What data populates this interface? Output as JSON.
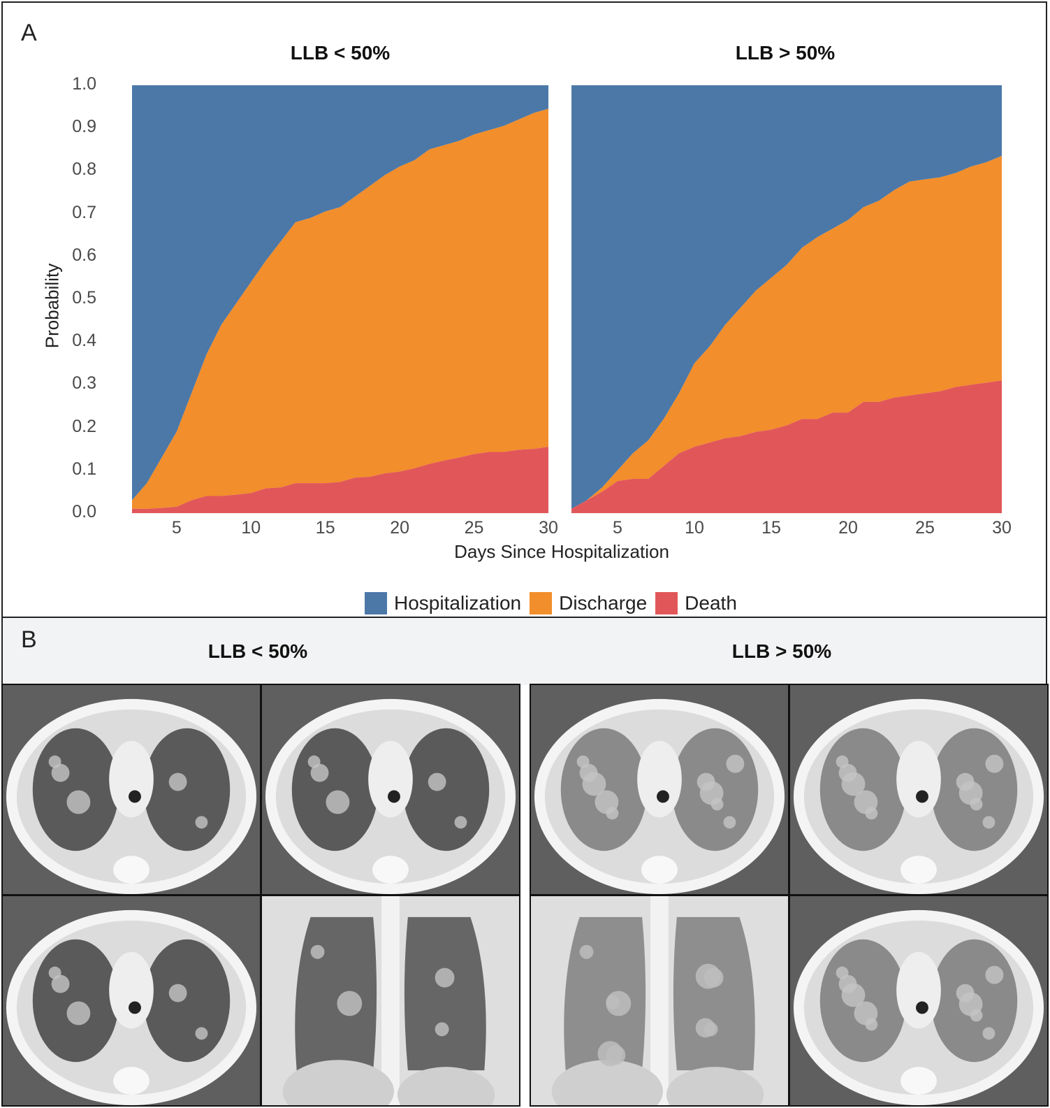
{
  "figure": {
    "panel_a_label": "A",
    "panel_b_label": "B"
  },
  "chart_data": {
    "type": "area",
    "stacked": true,
    "ylabel": "Probability",
    "xlabel": "Days Since Hospitalization",
    "ylim": [
      0.0,
      1.0
    ],
    "xlim": [
      2,
      30
    ],
    "yticks": [
      "0.0",
      "0.1",
      "0.2",
      "0.3",
      "0.4",
      "0.5",
      "0.6",
      "0.7",
      "0.8",
      "0.9",
      "1.0"
    ],
    "xticks": [
      "5",
      "10",
      "15",
      "20",
      "25",
      "30"
    ],
    "legend_position": "bottom",
    "legend": [
      {
        "name": "Hospitalization",
        "color": "#4c78a8"
      },
      {
        "name": "Discharge",
        "color": "#f28e2b"
      },
      {
        "name": "Death",
        "color": "#e15759"
      }
    ],
    "facets": [
      {
        "title": "LLB < 50%",
        "x": [
          2,
          3,
          4,
          5,
          6,
          7,
          8,
          9,
          10,
          11,
          12,
          13,
          14,
          15,
          16,
          17,
          18,
          19,
          20,
          21,
          22,
          23,
          24,
          25,
          26,
          27,
          28,
          29,
          30
        ],
        "death": [
          0.01,
          0.01,
          0.012,
          0.015,
          0.03,
          0.04,
          0.04,
          0.043,
          0.047,
          0.058,
          0.06,
          0.07,
          0.07,
          0.07,
          0.073,
          0.083,
          0.085,
          0.093,
          0.097,
          0.105,
          0.115,
          0.123,
          0.13,
          0.138,
          0.143,
          0.143,
          0.148,
          0.15,
          0.155
        ],
        "discharge_or_death": [
          0.03,
          0.07,
          0.13,
          0.19,
          0.28,
          0.37,
          0.44,
          0.49,
          0.54,
          0.59,
          0.635,
          0.68,
          0.69,
          0.705,
          0.715,
          0.74,
          0.765,
          0.79,
          0.81,
          0.825,
          0.85,
          0.86,
          0.87,
          0.885,
          0.895,
          0.905,
          0.92,
          0.935,
          0.945
        ]
      },
      {
        "title": "LLB > 50%",
        "x": [
          2,
          3,
          4,
          5,
          6,
          7,
          8,
          9,
          10,
          11,
          12,
          13,
          14,
          15,
          16,
          17,
          18,
          19,
          20,
          21,
          22,
          23,
          24,
          25,
          26,
          27,
          28,
          29,
          30
        ],
        "death": [
          0.01,
          0.03,
          0.05,
          0.075,
          0.08,
          0.08,
          0.11,
          0.14,
          0.155,
          0.165,
          0.175,
          0.18,
          0.19,
          0.195,
          0.205,
          0.22,
          0.22,
          0.235,
          0.235,
          0.26,
          0.26,
          0.27,
          0.275,
          0.28,
          0.285,
          0.295,
          0.3,
          0.305,
          0.31
        ],
        "discharge_or_death": [
          0.01,
          0.03,
          0.06,
          0.1,
          0.14,
          0.17,
          0.22,
          0.28,
          0.35,
          0.39,
          0.44,
          0.48,
          0.52,
          0.55,
          0.58,
          0.62,
          0.645,
          0.665,
          0.685,
          0.715,
          0.73,
          0.755,
          0.775,
          0.78,
          0.785,
          0.795,
          0.81,
          0.82,
          0.835
        ]
      }
    ]
  },
  "panel_b": {
    "groups": [
      {
        "title": "LLB < 50%",
        "images": [
          "axial-upper-ct",
          "axial-lower-ct",
          "axial-mid-ct",
          "coronal-ct"
        ]
      },
      {
        "title": "LLB > 50%",
        "images": [
          "axial-upper-ct",
          "axial-mid-ct",
          "coronal-ct",
          "axial-lower-ct"
        ]
      }
    ]
  }
}
